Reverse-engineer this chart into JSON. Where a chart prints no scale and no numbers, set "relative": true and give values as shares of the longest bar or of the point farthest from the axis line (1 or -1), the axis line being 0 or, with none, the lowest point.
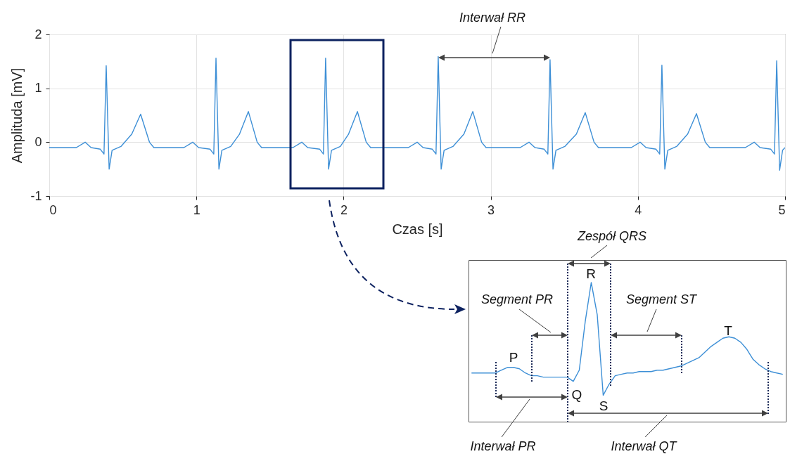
{
  "chart_data": [
    {
      "type": "line",
      "xlabel": "Czas [s]",
      "ylabel": "Amplituda [mV]",
      "xlim": [
        0,
        5
      ],
      "ylim": [
        -1,
        2
      ],
      "xticks": [
        0,
        1,
        2,
        3,
        4,
        5
      ],
      "yticks": [
        -1,
        0,
        1,
        2
      ],
      "grid": true,
      "x": [
        0,
        0.184,
        0.244,
        0.284,
        0.347,
        0.372,
        0.387,
        0.407,
        0.427,
        0.487,
        0.561,
        0.621,
        0.681,
        0.711,
        0.915,
        0.975,
        1.015,
        1.093,
        1.118,
        1.133,
        1.153,
        1.173,
        1.233,
        1.293,
        1.353,
        1.413,
        1.443,
        1.656,
        1.716,
        1.756,
        1.838,
        1.863,
        1.878,
        1.898,
        1.918,
        1.978,
        2.034,
        2.094,
        2.154,
        2.184,
        2.44,
        2.5,
        2.54,
        2.603,
        2.628,
        2.643,
        2.663,
        2.683,
        2.743,
        2.818,
        2.878,
        2.938,
        2.968,
        3.2,
        3.26,
        3.3,
        3.363,
        3.388,
        3.403,
        3.423,
        3.443,
        3.503,
        3.582,
        3.642,
        3.702,
        3.732,
        3.955,
        4.015,
        4.055,
        4.123,
        4.148,
        4.163,
        4.183,
        4.203,
        4.263,
        4.338,
        4.398,
        4.458,
        4.488,
        4.73,
        4.79,
        4.83,
        4.903,
        4.928,
        4.943,
        4.963,
        4.983,
        5
      ],
      "series": [
        {
          "color": "#3d8fd6",
          "values": [
            -0.1,
            -0.1,
            0.0,
            -0.1,
            -0.13,
            -0.22,
            1.42,
            -0.5,
            -0.15,
            -0.08,
            0.15,
            0.52,
            0.0,
            -0.1,
            -0.1,
            0.0,
            -0.1,
            -0.13,
            -0.22,
            1.56,
            -0.5,
            -0.15,
            -0.08,
            0.15,
            0.57,
            0.0,
            -0.1,
            -0.1,
            0.0,
            -0.1,
            -0.13,
            -0.22,
            1.56,
            -0.5,
            -0.15,
            -0.08,
            0.15,
            0.57,
            0.0,
            -0.1,
            -0.1,
            0.0,
            -0.1,
            -0.13,
            -0.22,
            1.59,
            -0.5,
            -0.15,
            -0.08,
            0.15,
            0.57,
            0.0,
            -0.1,
            -0.1,
            0.0,
            -0.1,
            -0.13,
            -0.22,
            1.53,
            -0.5,
            -0.15,
            -0.08,
            0.15,
            0.55,
            0.0,
            -0.1,
            -0.1,
            0.0,
            -0.1,
            -0.13,
            -0.22,
            1.43,
            -0.5,
            -0.15,
            -0.08,
            0.15,
            0.53,
            0.0,
            -0.1,
            -0.1,
            0.0,
            -0.1,
            -0.13,
            -0.22,
            1.51,
            -0.52,
            -0.15,
            -0.1
          ]
        }
      ],
      "annotations": [
        "Interwał RR"
      ]
    },
    {
      "type": "line",
      "relative": true,
      "categories": [
        null,
        null,
        null,
        null,
        null,
        null,
        null,
        null,
        null,
        null,
        null,
        null,
        null,
        null,
        null,
        null,
        null,
        null,
        null,
        null,
        null,
        null,
        null,
        null,
        null,
        null,
        null,
        null,
        null,
        null,
        null,
        null,
        null,
        null,
        null,
        null,
        null,
        null,
        null,
        null,
        null,
        null,
        null,
        null,
        null,
        null,
        null,
        null,
        null,
        null,
        null,
        null,
        null
      ],
      "series": [
        {
          "color": "#3d8fd6",
          "values": [
            0.35,
            0.35,
            0.35,
            0.35,
            0.35,
            0.37,
            0.39,
            0.39,
            0.38,
            0.35,
            0.33,
            0.33,
            0.32,
            0.32,
            0.32,
            0.32,
            0.32,
            0.29,
            0.37,
            0.72,
            1,
            0.77,
            0.19,
            0.27,
            0.33,
            0.34,
            0.35,
            0.35,
            0.36,
            0.36,
            0.36,
            0.37,
            0.37,
            0.38,
            0.39,
            0.4,
            0.42,
            0.44,
            0.46,
            0.5,
            0.54,
            0.57,
            0.6,
            0.61,
            0.6,
            0.57,
            0.52,
            0.45,
            0.41,
            0.38,
            0.36,
            0.35,
            0.34
          ]
        }
      ],
      "annotations": [
        "Zespół QRS",
        "Segment PR",
        "Segment ST",
        "P",
        "R",
        "T",
        "Q",
        "S",
        "Interwał PR",
        "Interwał QT"
      ]
    }
  ]
}
